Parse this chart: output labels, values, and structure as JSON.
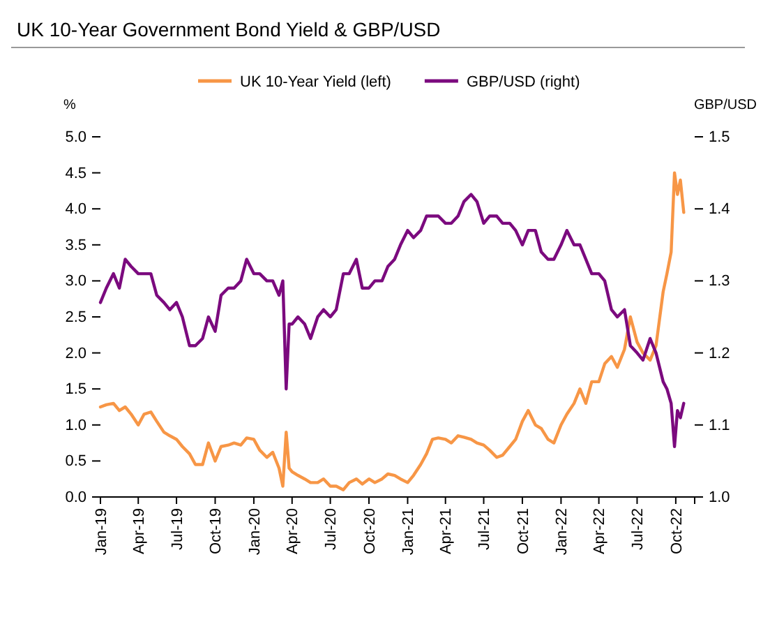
{
  "chart_data": {
    "type": "line",
    "title": "UK 10-Year Government Bond Yield & GBP/USD",
    "ylabel": "%",
    "y2label": "GBP/USD",
    "legend": "top",
    "grid": false,
    "line_style": "solid",
    "marker": "none",
    "x": [
      "2019-01-01",
      "2019-01-15",
      "2019-02-01",
      "2019-02-15",
      "2019-03-01",
      "2019-03-15",
      "2019-04-01",
      "2019-04-15",
      "2019-05-01",
      "2019-05-15",
      "2019-06-01",
      "2019-06-15",
      "2019-07-01",
      "2019-07-15",
      "2019-08-01",
      "2019-08-15",
      "2019-09-01",
      "2019-09-15",
      "2019-10-01",
      "2019-10-15",
      "2019-11-01",
      "2019-11-15",
      "2019-12-01",
      "2019-12-15",
      "2020-01-01",
      "2020-01-15",
      "2020-02-01",
      "2020-02-15",
      "2020-03-01",
      "2020-03-10",
      "2020-03-18",
      "2020-03-25",
      "2020-04-01",
      "2020-04-15",
      "2020-05-01",
      "2020-05-15",
      "2020-06-01",
      "2020-06-15",
      "2020-07-01",
      "2020-07-15",
      "2020-08-01",
      "2020-08-15",
      "2020-09-01",
      "2020-09-15",
      "2020-10-01",
      "2020-10-15",
      "2020-11-01",
      "2020-11-15",
      "2020-12-01",
      "2020-12-15",
      "2021-01-01",
      "2021-01-15",
      "2021-02-01",
      "2021-02-15",
      "2021-03-01",
      "2021-03-15",
      "2021-04-01",
      "2021-04-15",
      "2021-05-01",
      "2021-05-15",
      "2021-06-01",
      "2021-06-15",
      "2021-07-01",
      "2021-07-15",
      "2021-08-01",
      "2021-08-15",
      "2021-09-01",
      "2021-09-15",
      "2021-10-01",
      "2021-10-15",
      "2021-11-01",
      "2021-11-15",
      "2021-12-01",
      "2021-12-15",
      "2022-01-01",
      "2022-01-15",
      "2022-02-01",
      "2022-02-15",
      "2022-03-01",
      "2022-03-15",
      "2022-04-01",
      "2022-04-15",
      "2022-05-01",
      "2022-05-15",
      "2022-06-01",
      "2022-06-15",
      "2022-07-01",
      "2022-07-15",
      "2022-08-01",
      "2022-08-15",
      "2022-09-01",
      "2022-09-10",
      "2022-09-20",
      "2022-09-28",
      "2022-10-05",
      "2022-10-12",
      "2022-10-20"
    ],
    "series": [
      {
        "name": "UK 10-Year Yield (left)",
        "color": "#f79646",
        "values": [
          1.25,
          1.28,
          1.3,
          1.2,
          1.25,
          1.15,
          1.0,
          1.15,
          1.18,
          1.05,
          0.9,
          0.85,
          0.8,
          0.7,
          0.6,
          0.45,
          0.45,
          0.75,
          0.5,
          0.7,
          0.72,
          0.75,
          0.72,
          0.82,
          0.8,
          0.65,
          0.55,
          0.62,
          0.4,
          0.15,
          0.9,
          0.4,
          0.35,
          0.3,
          0.25,
          0.2,
          0.2,
          0.25,
          0.15,
          0.15,
          0.1,
          0.2,
          0.25,
          0.18,
          0.25,
          0.2,
          0.25,
          0.32,
          0.3,
          0.25,
          0.2,
          0.3,
          0.45,
          0.6,
          0.8,
          0.82,
          0.8,
          0.75,
          0.85,
          0.83,
          0.8,
          0.75,
          0.72,
          0.65,
          0.55,
          0.58,
          0.7,
          0.8,
          1.05,
          1.2,
          1.0,
          0.95,
          0.8,
          0.75,
          1.0,
          1.15,
          1.3,
          1.5,
          1.3,
          1.6,
          1.6,
          1.85,
          1.95,
          1.8,
          2.05,
          2.5,
          2.15,
          2.0,
          1.9,
          2.1,
          2.85,
          3.1,
          3.4,
          4.5,
          4.2,
          4.4,
          3.95
        ]
      },
      {
        "name": "GBP/USD (right)",
        "color": "#7b0a7e",
        "axis": "y2",
        "values": [
          1.27,
          1.29,
          1.31,
          1.29,
          1.33,
          1.32,
          1.31,
          1.31,
          1.31,
          1.28,
          1.27,
          1.26,
          1.27,
          1.25,
          1.21,
          1.21,
          1.22,
          1.25,
          1.23,
          1.28,
          1.29,
          1.29,
          1.3,
          1.33,
          1.31,
          1.31,
          1.3,
          1.3,
          1.28,
          1.3,
          1.15,
          1.24,
          1.24,
          1.25,
          1.24,
          1.22,
          1.25,
          1.26,
          1.25,
          1.26,
          1.31,
          1.31,
          1.33,
          1.29,
          1.29,
          1.3,
          1.3,
          1.32,
          1.33,
          1.35,
          1.37,
          1.36,
          1.37,
          1.39,
          1.39,
          1.39,
          1.38,
          1.38,
          1.39,
          1.41,
          1.42,
          1.41,
          1.38,
          1.39,
          1.39,
          1.38,
          1.38,
          1.37,
          1.35,
          1.37,
          1.37,
          1.34,
          1.33,
          1.33,
          1.35,
          1.37,
          1.35,
          1.35,
          1.33,
          1.31,
          1.31,
          1.3,
          1.26,
          1.25,
          1.26,
          1.21,
          1.2,
          1.19,
          1.22,
          1.2,
          1.16,
          1.15,
          1.13,
          1.07,
          1.12,
          1.11,
          1.13
        ]
      }
    ],
    "xlim": [
      "2019-01-01",
      "2022-11-15"
    ],
    "xticks": [
      {
        "value": "2019-01",
        "label": "Jan-19"
      },
      {
        "value": "2019-04",
        "label": "Apr-19"
      },
      {
        "value": "2019-07",
        "label": "Jul-19"
      },
      {
        "value": "2019-10",
        "label": "Oct-19"
      },
      {
        "value": "2020-01",
        "label": "Jan-20"
      },
      {
        "value": "2020-04",
        "label": "Apr-20"
      },
      {
        "value": "2020-07",
        "label": "Jul-20"
      },
      {
        "value": "2020-10",
        "label": "Oct-20"
      },
      {
        "value": "2021-01",
        "label": "Jan-21"
      },
      {
        "value": "2021-04",
        "label": "Apr-21"
      },
      {
        "value": "2021-07",
        "label": "Jul-21"
      },
      {
        "value": "2021-10",
        "label": "Oct-21"
      },
      {
        "value": "2022-01",
        "label": "Jan-22"
      },
      {
        "value": "2022-04",
        "label": "Apr-22"
      },
      {
        "value": "2022-07",
        "label": "Jul-22"
      },
      {
        "value": "2022-10",
        "label": "Oct-22"
      }
    ],
    "ylim": [
      0,
      5
    ],
    "yticks": [
      {
        "value": 0,
        "label": "0.0"
      },
      {
        "value": 0.5,
        "label": "0.5"
      },
      {
        "value": 1,
        "label": "1.0"
      },
      {
        "value": 1.5,
        "label": "1.5"
      },
      {
        "value": 2,
        "label": "2.0"
      },
      {
        "value": 2.5,
        "label": "2.5"
      },
      {
        "value": 3,
        "label": "3.0"
      },
      {
        "value": 3.5,
        "label": "3.5"
      },
      {
        "value": 4,
        "label": "4.0"
      },
      {
        "value": 4.5,
        "label": "4.5"
      },
      {
        "value": 5,
        "label": "5.0"
      }
    ],
    "y2lim": [
      1,
      1.5
    ],
    "y2ticks": [
      {
        "value": 1,
        "label": "1.0"
      },
      1.1,
      1.2,
      1.3,
      1.4,
      1.5
    ]
  }
}
